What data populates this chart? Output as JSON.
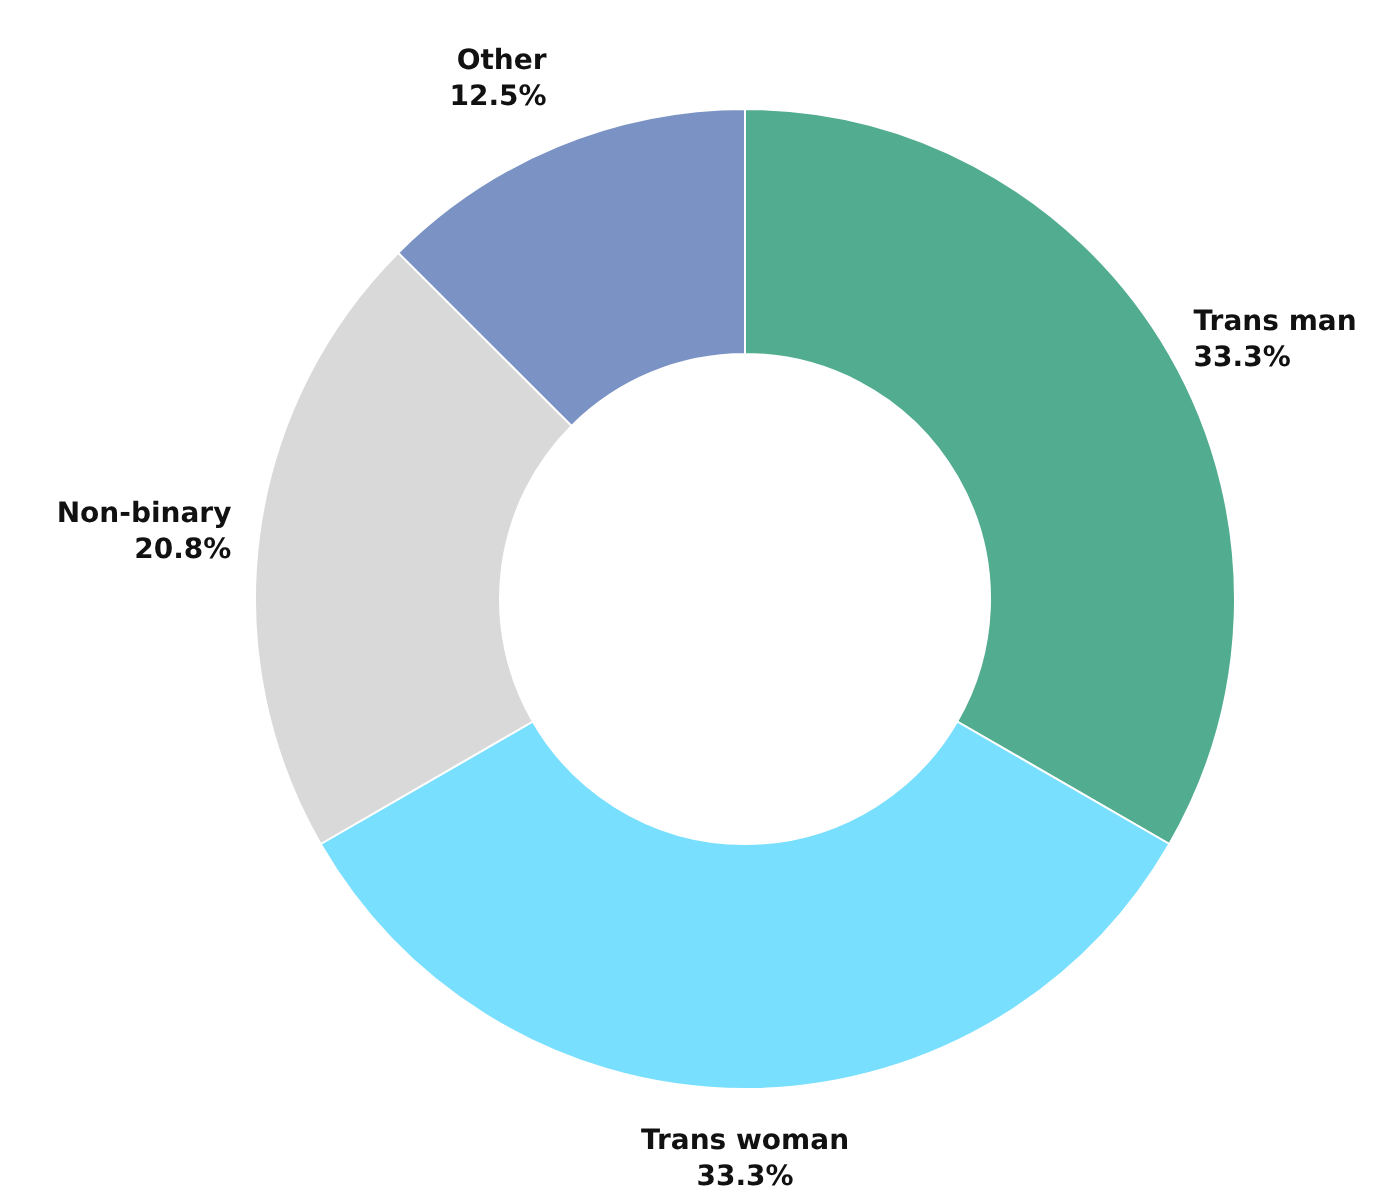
{
  "chart_data": {
    "type": "donut",
    "categories": [
      "Trans man",
      "Trans woman",
      "Non-binary",
      "Other"
    ],
    "values": [
      33.3,
      33.3,
      20.8,
      12.5
    ],
    "value_labels": [
      "33.3%",
      "33.3%",
      "20.8%",
      "12.5%"
    ],
    "colors": [
      "#52ac8f",
      "#79dffe",
      "#d9d9d9",
      "#7b93c4"
    ]
  }
}
